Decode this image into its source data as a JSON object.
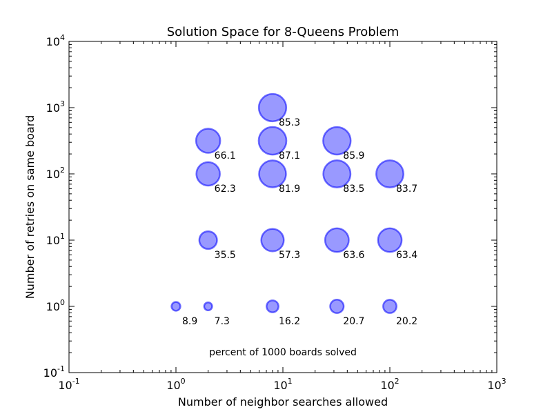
{
  "chart_data": {
    "type": "scatter",
    "title": "Solution Space for 8-Queens Problem",
    "xlabel": "Number of neighbor searches allowed",
    "ylabel": "Number of retries on same board",
    "x_scale": "log",
    "y_scale": "log",
    "xlim": [
      0.1,
      1000
    ],
    "ylim": [
      0.1,
      10000
    ],
    "x_ticks": [
      {
        "value": 0.1,
        "base": "10",
        "exp": "-1"
      },
      {
        "value": 1,
        "base": "10",
        "exp": "0"
      },
      {
        "value": 10,
        "base": "10",
        "exp": "1"
      },
      {
        "value": 100,
        "base": "10",
        "exp": "2"
      },
      {
        "value": 1000,
        "base": "10",
        "exp": "3"
      }
    ],
    "y_ticks": [
      {
        "value": 0.1,
        "base": "10",
        "exp": "-1"
      },
      {
        "value": 1,
        "base": "10",
        "exp": "0"
      },
      {
        "value": 10,
        "base": "10",
        "exp": "1"
      },
      {
        "value": 100,
        "base": "10",
        "exp": "2"
      },
      {
        "value": 1000,
        "base": "10",
        "exp": "3"
      },
      {
        "value": 10000,
        "base": "10",
        "exp": "4"
      }
    ],
    "grid": false,
    "annotation": "percent of 1000 boards solved",
    "marker_color": "#0000ff",
    "points": [
      {
        "x": 1,
        "y": 1,
        "label": "8.9"
      },
      {
        "x": 2,
        "y": 1,
        "label": "7.3"
      },
      {
        "x": 8,
        "y": 1,
        "label": "16.2"
      },
      {
        "x": 32,
        "y": 1,
        "label": "20.7"
      },
      {
        "x": 100,
        "y": 1,
        "label": "20.2"
      },
      {
        "x": 2,
        "y": 10,
        "label": "35.5"
      },
      {
        "x": 8,
        "y": 10,
        "label": "57.3"
      },
      {
        "x": 32,
        "y": 10,
        "label": "63.6"
      },
      {
        "x": 100,
        "y": 10,
        "label": "63.4"
      },
      {
        "x": 2,
        "y": 100,
        "label": "62.3"
      },
      {
        "x": 8,
        "y": 100,
        "label": "81.9"
      },
      {
        "x": 32,
        "y": 100,
        "label": "83.5"
      },
      {
        "x": 100,
        "y": 100,
        "label": "83.7"
      },
      {
        "x": 2,
        "y": 316,
        "label": "66.1"
      },
      {
        "x": 8,
        "y": 316,
        "label": "87.1"
      },
      {
        "x": 32,
        "y": 316,
        "label": "85.9"
      },
      {
        "x": 8,
        "y": 1000,
        "label": "85.3"
      }
    ]
  }
}
